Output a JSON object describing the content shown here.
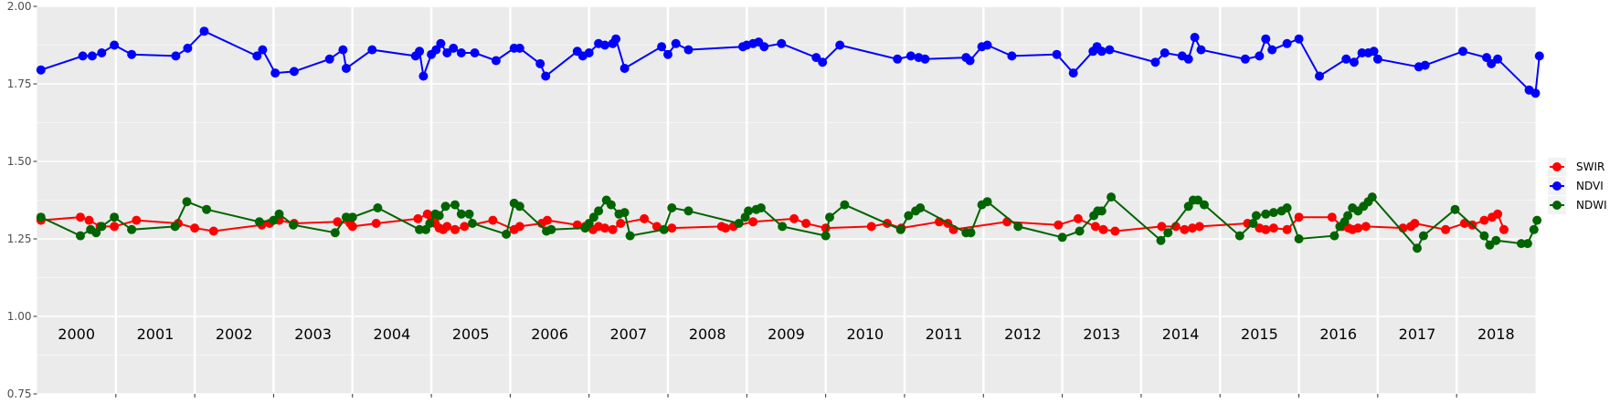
{
  "chart_data": {
    "type": "line",
    "title": "",
    "xlabel": "",
    "ylabel": "",
    "xlim": [
      2000.0,
      2019.0
    ],
    "ylim": [
      0.75,
      2.0
    ],
    "yticks": [
      "0.75",
      "1.00",
      "1.25",
      "1.50",
      "1.75",
      "2.00"
    ],
    "year_labels": [
      "2000",
      "2001",
      "2002",
      "2003",
      "2004",
      "2005",
      "2006",
      "2007",
      "2008",
      "2009",
      "2010",
      "2011",
      "2012",
      "2013",
      "2014",
      "2015",
      "2016",
      "2017",
      "2018"
    ],
    "grid": true,
    "legend_position": "right",
    "legend": [
      "SWIR",
      "NDVI",
      "NDWI"
    ],
    "series": [
      {
        "name": "SWIR",
        "color": "#ff0000",
        "points": [
          [
            2000.05,
            1.31
          ],
          [
            2000.55,
            1.32
          ],
          [
            2000.66,
            1.31
          ],
          [
            2000.8,
            1.29
          ],
          [
            2000.98,
            1.29
          ],
          [
            2001.26,
            1.31
          ],
          [
            2001.79,
            1.3
          ],
          [
            2002.0,
            1.285
          ],
          [
            2002.24,
            1.275
          ],
          [
            2002.85,
            1.295
          ],
          [
            2002.95,
            1.3
          ],
          [
            2003.07,
            1.31
          ],
          [
            2003.26,
            1.3
          ],
          [
            2003.81,
            1.305
          ],
          [
            2003.97,
            1.3
          ],
          [
            2004.0,
            1.29
          ],
          [
            2004.3,
            1.3
          ],
          [
            2004.83,
            1.315
          ],
          [
            2004.95,
            1.33
          ],
          [
            2005.0,
            1.32
          ],
          [
            2005.05,
            1.3
          ],
          [
            2005.1,
            1.285
          ],
          [
            2005.15,
            1.28
          ],
          [
            2005.2,
            1.29
          ],
          [
            2005.3,
            1.28
          ],
          [
            2005.42,
            1.29
          ],
          [
            2005.78,
            1.31
          ],
          [
            2006.05,
            1.28
          ],
          [
            2006.12,
            1.29
          ],
          [
            2006.4,
            1.3
          ],
          [
            2006.47,
            1.31
          ],
          [
            2006.85,
            1.295
          ],
          [
            2006.95,
            1.29
          ],
          [
            2007.05,
            1.28
          ],
          [
            2007.12,
            1.29
          ],
          [
            2007.2,
            1.285
          ],
          [
            2007.3,
            1.28
          ],
          [
            2007.4,
            1.3
          ],
          [
            2007.7,
            1.315
          ],
          [
            2007.86,
            1.29
          ],
          [
            2008.05,
            1.285
          ],
          [
            2008.68,
            1.29
          ],
          [
            2008.73,
            1.285
          ],
          [
            2008.83,
            1.29
          ],
          [
            2009.08,
            1.305
          ],
          [
            2009.6,
            1.315
          ],
          [
            2009.75,
            1.3
          ],
          [
            2010.0,
            1.285
          ],
          [
            2010.58,
            1.29
          ],
          [
            2010.78,
            1.3
          ],
          [
            2010.96,
            1.285
          ],
          [
            2011.44,
            1.305
          ],
          [
            2011.55,
            1.3
          ],
          [
            2011.62,
            1.28
          ],
          [
            2012.3,
            1.305
          ],
          [
            2012.95,
            1.295
          ],
          [
            2013.2,
            1.315
          ],
          [
            2013.42,
            1.29
          ],
          [
            2013.52,
            1.28
          ],
          [
            2013.67,
            1.275
          ],
          [
            2014.26,
            1.29
          ],
          [
            2014.44,
            1.29
          ],
          [
            2014.55,
            1.28
          ],
          [
            2014.65,
            1.285
          ],
          [
            2014.74,
            1.29
          ],
          [
            2015.35,
            1.3
          ],
          [
            2015.5,
            1.285
          ],
          [
            2015.58,
            1.28
          ],
          [
            2015.68,
            1.285
          ],
          [
            2015.85,
            1.28
          ],
          [
            2016.0,
            1.32
          ],
          [
            2016.42,
            1.32
          ],
          [
            2016.55,
            1.29
          ],
          [
            2016.63,
            1.285
          ],
          [
            2016.68,
            1.28
          ],
          [
            2016.75,
            1.285
          ],
          [
            2016.85,
            1.29
          ],
          [
            2017.32,
            1.285
          ],
          [
            2017.42,
            1.29
          ],
          [
            2017.47,
            1.3
          ],
          [
            2017.86,
            1.28
          ],
          [
            2018.1,
            1.3
          ],
          [
            2018.2,
            1.295
          ],
          [
            2018.35,
            1.31
          ],
          [
            2018.45,
            1.32
          ],
          [
            2018.52,
            1.33
          ],
          [
            2018.6,
            1.28
          ]
        ]
      },
      {
        "name": "NDVI",
        "color": "#0000ff",
        "points": [
          [
            2000.05,
            1.795
          ],
          [
            2000.58,
            1.84
          ],
          [
            2000.7,
            1.84
          ],
          [
            2000.82,
            1.85
          ],
          [
            2000.98,
            1.875
          ],
          [
            2001.2,
            1.845
          ],
          [
            2001.76,
            1.84
          ],
          [
            2001.91,
            1.865
          ],
          [
            2002.12,
            1.92
          ],
          [
            2002.79,
            1.84
          ],
          [
            2002.86,
            1.86
          ],
          [
            2003.02,
            1.785
          ],
          [
            2003.26,
            1.79
          ],
          [
            2003.71,
            1.83
          ],
          [
            2003.88,
            1.86
          ],
          [
            2003.92,
            1.8
          ],
          [
            2004.25,
            1.86
          ],
          [
            2004.8,
            1.84
          ],
          [
            2004.85,
            1.855
          ],
          [
            2004.9,
            1.775
          ],
          [
            2005.0,
            1.845
          ],
          [
            2005.06,
            1.86
          ],
          [
            2005.12,
            1.88
          ],
          [
            2005.2,
            1.85
          ],
          [
            2005.28,
            1.865
          ],
          [
            2005.38,
            1.85
          ],
          [
            2005.55,
            1.85
          ],
          [
            2005.82,
            1.825
          ],
          [
            2006.05,
            1.865
          ],
          [
            2006.12,
            1.865
          ],
          [
            2006.38,
            1.815
          ],
          [
            2006.45,
            1.775
          ],
          [
            2006.85,
            1.855
          ],
          [
            2006.92,
            1.84
          ],
          [
            2007.0,
            1.85
          ],
          [
            2007.12,
            1.88
          ],
          [
            2007.2,
            1.875
          ],
          [
            2007.3,
            1.88
          ],
          [
            2007.34,
            1.895
          ],
          [
            2007.45,
            1.8
          ],
          [
            2007.92,
            1.87
          ],
          [
            2008.0,
            1.845
          ],
          [
            2008.1,
            1.88
          ],
          [
            2008.26,
            1.86
          ],
          [
            2008.95,
            1.87
          ],
          [
            2009.0,
            1.875
          ],
          [
            2009.08,
            1.88
          ],
          [
            2009.15,
            1.885
          ],
          [
            2009.22,
            1.87
          ],
          [
            2009.44,
            1.88
          ],
          [
            2009.88,
            1.835
          ],
          [
            2009.96,
            1.82
          ],
          [
            2010.18,
            1.875
          ],
          [
            2010.91,
            1.83
          ],
          [
            2011.08,
            1.84
          ],
          [
            2011.18,
            1.835
          ],
          [
            2011.26,
            1.83
          ],
          [
            2011.78,
            1.835
          ],
          [
            2011.83,
            1.825
          ],
          [
            2011.98,
            1.87
          ],
          [
            2012.05,
            1.875
          ],
          [
            2012.36,
            1.84
          ],
          [
            2012.93,
            1.845
          ],
          [
            2013.14,
            1.785
          ],
          [
            2013.39,
            1.855
          ],
          [
            2013.44,
            1.87
          ],
          [
            2013.5,
            1.855
          ],
          [
            2013.6,
            1.86
          ],
          [
            2014.18,
            1.82
          ],
          [
            2014.3,
            1.85
          ],
          [
            2014.52,
            1.84
          ],
          [
            2014.6,
            1.83
          ],
          [
            2014.68,
            1.9
          ],
          [
            2014.76,
            1.86
          ],
          [
            2015.32,
            1.83
          ],
          [
            2015.5,
            1.84
          ],
          [
            2015.58,
            1.895
          ],
          [
            2015.66,
            1.86
          ],
          [
            2015.85,
            1.88
          ],
          [
            2016.0,
            1.895
          ],
          [
            2016.26,
            1.775
          ],
          [
            2016.6,
            1.83
          ],
          [
            2016.7,
            1.82
          ],
          [
            2016.8,
            1.85
          ],
          [
            2016.88,
            1.85
          ],
          [
            2016.95,
            1.855
          ],
          [
            2017.0,
            1.83
          ],
          [
            2017.52,
            1.805
          ],
          [
            2017.6,
            1.81
          ],
          [
            2018.08,
            1.855
          ],
          [
            2018.38,
            1.835
          ],
          [
            2018.44,
            1.815
          ],
          [
            2018.52,
            1.83
          ],
          [
            2018.92,
            1.73
          ],
          [
            2019.0,
            1.72
          ],
          [
            2019.05,
            1.84
          ]
        ]
      },
      {
        "name": "NDWI",
        "color": "#006400",
        "points": [
          [
            2000.05,
            1.32
          ],
          [
            2000.55,
            1.26
          ],
          [
            2000.68,
            1.28
          ],
          [
            2000.75,
            1.27
          ],
          [
            2000.82,
            1.29
          ],
          [
            2000.98,
            1.32
          ],
          [
            2001.2,
            1.28
          ],
          [
            2001.75,
            1.29
          ],
          [
            2001.9,
            1.37
          ],
          [
            2002.15,
            1.345
          ],
          [
            2002.82,
            1.305
          ],
          [
            2003.0,
            1.31
          ],
          [
            2003.07,
            1.33
          ],
          [
            2003.25,
            1.295
          ],
          [
            2003.78,
            1.27
          ],
          [
            2003.92,
            1.32
          ],
          [
            2004.0,
            1.32
          ],
          [
            2004.32,
            1.35
          ],
          [
            2004.85,
            1.28
          ],
          [
            2004.93,
            1.28
          ],
          [
            2004.98,
            1.3
          ],
          [
            2005.05,
            1.33
          ],
          [
            2005.1,
            1.325
          ],
          [
            2005.18,
            1.355
          ],
          [
            2005.3,
            1.36
          ],
          [
            2005.38,
            1.33
          ],
          [
            2005.48,
            1.33
          ],
          [
            2005.52,
            1.3
          ],
          [
            2005.95,
            1.265
          ],
          [
            2006.05,
            1.365
          ],
          [
            2006.12,
            1.355
          ],
          [
            2006.46,
            1.275
          ],
          [
            2006.52,
            1.28
          ],
          [
            2006.95,
            1.285
          ],
          [
            2007.0,
            1.3
          ],
          [
            2007.06,
            1.32
          ],
          [
            2007.12,
            1.34
          ],
          [
            2007.22,
            1.375
          ],
          [
            2007.28,
            1.36
          ],
          [
            2007.38,
            1.33
          ],
          [
            2007.45,
            1.335
          ],
          [
            2007.52,
            1.26
          ],
          [
            2007.95,
            1.28
          ],
          [
            2008.05,
            1.35
          ],
          [
            2008.26,
            1.34
          ],
          [
            2008.9,
            1.3
          ],
          [
            2008.98,
            1.32
          ],
          [
            2009.02,
            1.34
          ],
          [
            2009.12,
            1.345
          ],
          [
            2009.18,
            1.35
          ],
          [
            2009.45,
            1.29
          ],
          [
            2010.0,
            1.26
          ],
          [
            2010.05,
            1.32
          ],
          [
            2010.24,
            1.36
          ],
          [
            2010.95,
            1.28
          ],
          [
            2011.05,
            1.325
          ],
          [
            2011.14,
            1.34
          ],
          [
            2011.2,
            1.35
          ],
          [
            2011.78,
            1.27
          ],
          [
            2011.84,
            1.27
          ],
          [
            2011.98,
            1.36
          ],
          [
            2012.05,
            1.37
          ],
          [
            2012.44,
            1.29
          ],
          [
            2013.0,
            1.255
          ],
          [
            2013.22,
            1.275
          ],
          [
            2013.4,
            1.325
          ],
          [
            2013.45,
            1.34
          ],
          [
            2013.5,
            1.34
          ],
          [
            2013.62,
            1.385
          ],
          [
            2014.25,
            1.245
          ],
          [
            2014.34,
            1.27
          ],
          [
            2014.6,
            1.355
          ],
          [
            2014.66,
            1.375
          ],
          [
            2014.72,
            1.375
          ],
          [
            2014.8,
            1.36
          ],
          [
            2015.25,
            1.26
          ],
          [
            2015.42,
            1.3
          ],
          [
            2015.46,
            1.325
          ],
          [
            2015.58,
            1.33
          ],
          [
            2015.68,
            1.335
          ],
          [
            2015.78,
            1.34
          ],
          [
            2015.85,
            1.35
          ],
          [
            2016.0,
            1.25
          ],
          [
            2016.45,
            1.26
          ],
          [
            2016.52,
            1.29
          ],
          [
            2016.58,
            1.305
          ],
          [
            2016.62,
            1.325
          ],
          [
            2016.68,
            1.35
          ],
          [
            2016.75,
            1.34
          ],
          [
            2016.82,
            1.355
          ],
          [
            2016.88,
            1.37
          ],
          [
            2016.93,
            1.385
          ],
          [
            2017.5,
            1.22
          ],
          [
            2017.58,
            1.26
          ],
          [
            2017.98,
            1.345
          ],
          [
            2018.35,
            1.26
          ],
          [
            2018.42,
            1.23
          ],
          [
            2018.5,
            1.245
          ],
          [
            2018.82,
            1.235
          ],
          [
            2018.9,
            1.235
          ],
          [
            2018.98,
            1.28
          ],
          [
            2019.02,
            1.31
          ]
        ]
      }
    ]
  }
}
